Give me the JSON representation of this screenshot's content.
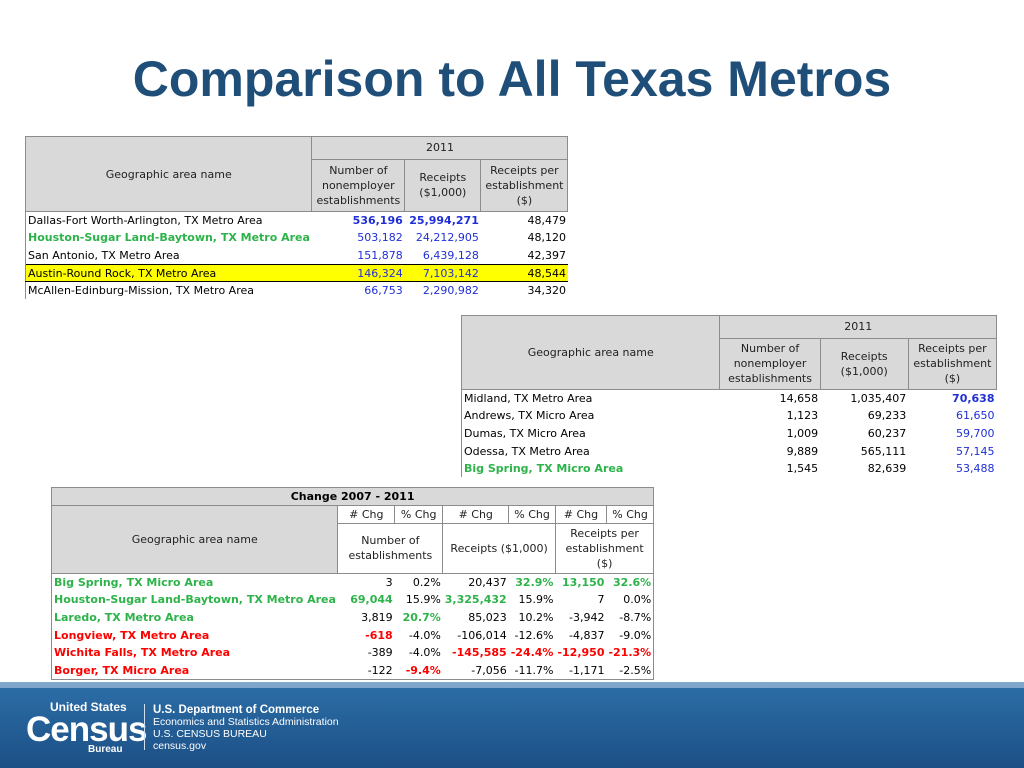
{
  "title": "Comparison to All Texas Metros",
  "table1": {
    "year": "2011",
    "col_name": "Geographic area name",
    "col_est": "Number of nonemployer establishments",
    "col_rec": "Receipts ($1,000)",
    "col_per": "Receipts per establishment ($)",
    "rows": [
      {
        "name": "Dallas-Fort Worth-Arlington, TX Metro Area",
        "est": "536,196",
        "rec": "25,994,271",
        "per": "48,479"
      },
      {
        "name": "Houston-Sugar Land-Baytown, TX Metro Area",
        "est": "503,182",
        "rec": "24,212,905",
        "per": "48,120"
      },
      {
        "name": "San Antonio, TX Metro Area",
        "est": "151,878",
        "rec": "6,439,128",
        "per": "42,397"
      },
      {
        "name": "Austin-Round Rock, TX Metro Area",
        "est": "146,324",
        "rec": "7,103,142",
        "per": "48,544"
      },
      {
        "name": "McAllen-Edinburg-Mission, TX Metro Area",
        "est": "66,753",
        "rec": "2,290,982",
        "per": "34,320"
      }
    ]
  },
  "table2": {
    "year": "2011",
    "col_name": "Geographic area name",
    "col_est": "Number of nonemployer establishments",
    "col_rec": "Receipts ($1,000)",
    "col_per": "Receipts per establishment ($)",
    "rows": [
      {
        "name": "Midland, TX Metro Area",
        "est": "14,658",
        "rec": "1,035,407",
        "per": "70,638"
      },
      {
        "name": "Andrews, TX Micro Area",
        "est": "1,123",
        "rec": "69,233",
        "per": "61,650"
      },
      {
        "name": "Dumas, TX Micro Area",
        "est": "1,009",
        "rec": "60,237",
        "per": "59,700"
      },
      {
        "name": "Odessa, TX Metro Area",
        "est": "9,889",
        "rec": "565,111",
        "per": "57,145"
      },
      {
        "name": "Big Spring, TX Micro Area",
        "est": "1,545",
        "rec": "82,639",
        "per": "53,488"
      }
    ]
  },
  "table3": {
    "period": "Change 2007 - 2011",
    "h_chg": "# Chg",
    "h_pct": "% Chg",
    "col_name": "Geographic area name",
    "col_est": "Number of establishments",
    "col_rec": "Receipts ($1,000)",
    "col_per": "Receipts per establishment ($)",
    "rows": [
      {
        "name": "Big Spring, TX Micro Area",
        "ec": "3",
        "ep": "0.2%",
        "rc": "20,437",
        "rp": "32.9%",
        "pc": "13,150",
        "pp": "32.6%"
      },
      {
        "name": "Houston-Sugar Land-Baytown, TX Metro Area",
        "ec": "69,044",
        "ep": "15.9%",
        "rc": "3,325,432",
        "rp": "15.9%",
        "pc": "7",
        "pp": "0.0%"
      },
      {
        "name": "Laredo, TX Metro Area",
        "ec": "3,819",
        "ep": "20.7%",
        "rc": "85,023",
        "rp": "10.2%",
        "pc": "-3,942",
        "pp": "-8.7%"
      },
      {
        "name": "Longview, TX Metro Area",
        "ec": "-618",
        "ep": "-4.0%",
        "rc": "-106,014",
        "rp": "-12.6%",
        "pc": "-4,837",
        "pp": "-9.0%"
      },
      {
        "name": "Wichita Falls, TX Metro Area",
        "ec": "-389",
        "ep": "-4.0%",
        "rc": "-145,585",
        "rp": "-24.4%",
        "pc": "-12,950",
        "pp": "-21.3%"
      },
      {
        "name": "Borger, TX Micro Area",
        "ec": "-122",
        "ep": "-9.4%",
        "rc": "-7,056",
        "rp": "-11.7%",
        "pc": "-1,171",
        "pp": "-2.5%"
      }
    ]
  },
  "footer": {
    "logo_us": "United States",
    "logo_census": "Census",
    "logo_bureau": "Bureau",
    "dept": "U.S. Department of Commerce",
    "admin": "Economics and Statistics Administration",
    "bureau": "U.S. CENSUS BUREAU",
    "site": "census.gov"
  },
  "colors": {
    "title": "#1f4e79",
    "blue": "#1f2fd6",
    "green": "#2db34a",
    "red": "#ff0000",
    "highlight": "#ffff00"
  }
}
